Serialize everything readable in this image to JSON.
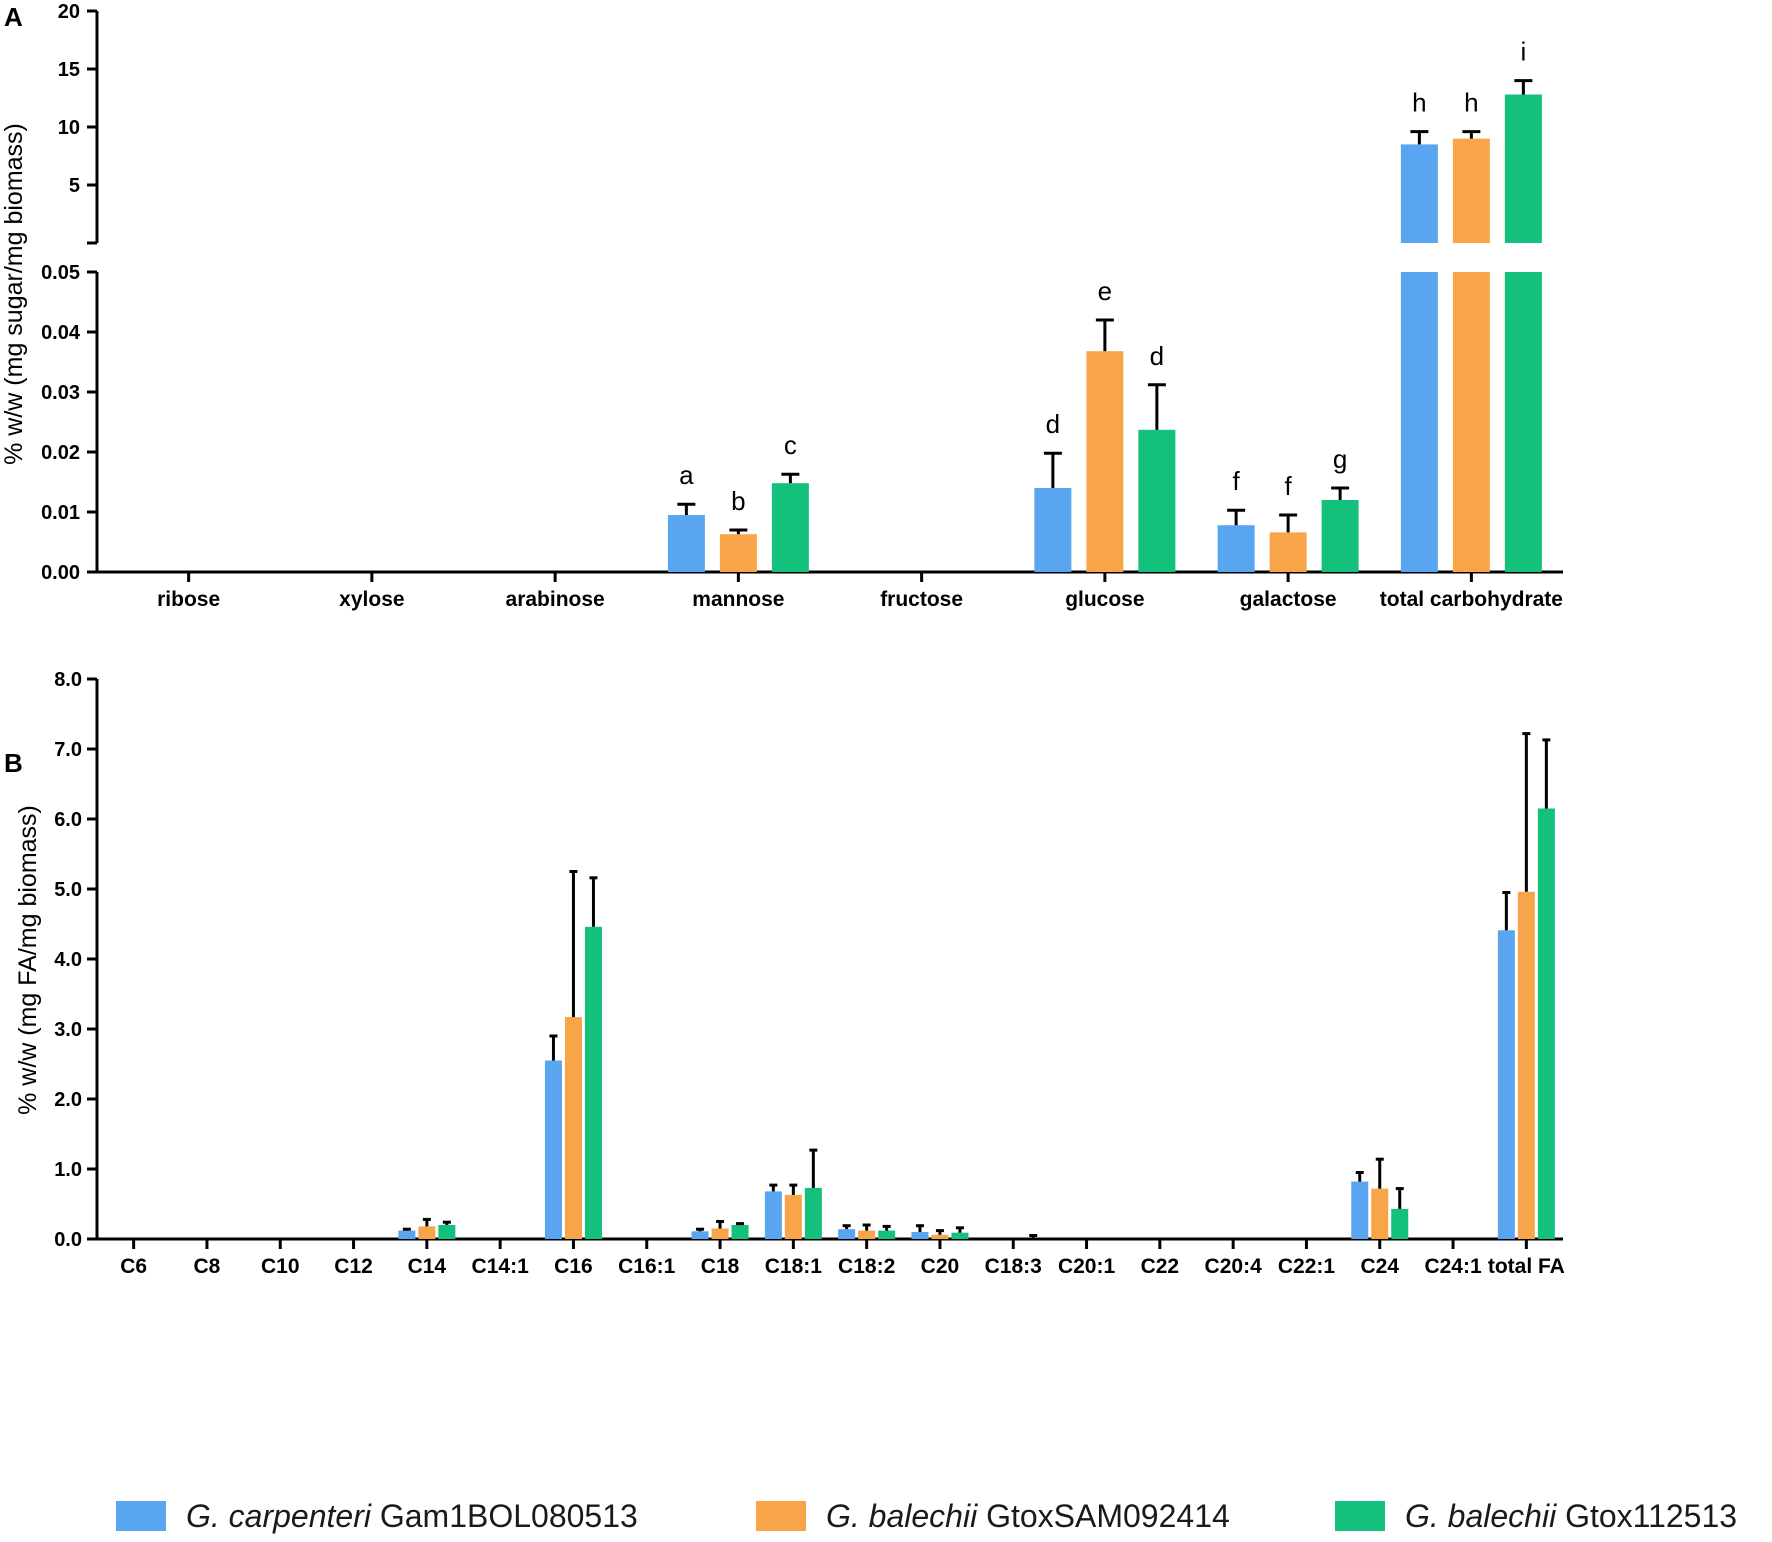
{
  "colors": {
    "series1": "#5aa5f0",
    "series2": "#f8a449",
    "series3": "#13c07c",
    "axis": "#000000"
  },
  "legend": [
    {
      "italic": "G. carpenteri",
      "rest": " Gam1BOL080513"
    },
    {
      "italic": "G. balechii",
      "rest": " GtoxSAM092414"
    },
    {
      "italic": "G. balechii",
      "rest": " Gtox112513"
    }
  ],
  "chart_data": [
    {
      "panel": "A",
      "type": "bar",
      "ylabel": "% w/w (mg sugar/mg biomass)",
      "y_axis_break": true,
      "ylim_lower": [
        0,
        0.05
      ],
      "yticks_lower": [
        "0.00",
        "0.01",
        "0.02",
        "0.03",
        "0.04",
        "0.05"
      ],
      "ylim_upper": [
        0,
        20
      ],
      "yticks_upper": [
        "5",
        "10",
        "15",
        "20"
      ],
      "categories": [
        "ribose",
        "xylose",
        "arabinose",
        "mannose",
        "fructose",
        "glucose",
        "galactose",
        "total carbohydrate"
      ],
      "series": [
        {
          "values": [
            0,
            0,
            0,
            0.0095,
            0,
            0.014,
            0.0078,
            8.5
          ],
          "errors": [
            0,
            0,
            0,
            0.0018,
            0,
            0.0058,
            0.0025,
            1.1
          ],
          "letters": [
            "",
            "",
            "",
            "a",
            "",
            "d",
            "f",
            "h"
          ]
        },
        {
          "values": [
            0,
            0,
            0,
            0.0063,
            0,
            0.0368,
            0.0066,
            9.0
          ],
          "errors": [
            0,
            0,
            0,
            0.0007,
            0,
            0.0052,
            0.0029,
            0.6
          ],
          "letters": [
            "",
            "",
            "",
            "b",
            "",
            "e",
            "f",
            "h"
          ]
        },
        {
          "values": [
            0,
            0,
            0,
            0.0148,
            0,
            0.0237,
            0.012,
            12.8
          ],
          "errors": [
            0,
            0,
            0,
            0.0015,
            0,
            0.0075,
            0.002,
            1.2
          ],
          "letters": [
            "",
            "",
            "",
            "c",
            "",
            "d",
            "g",
            "i"
          ]
        }
      ]
    },
    {
      "panel": "B",
      "type": "bar",
      "ylabel": "% w/w (mg FA/mg biomass)",
      "ylim": [
        0,
        8
      ],
      "yticks": [
        "0.0",
        "1.0",
        "2.0",
        "3.0",
        "4.0",
        "5.0",
        "6.0",
        "7.0",
        "8.0"
      ],
      "categories": [
        "C6",
        "C8",
        "C10",
        "C12",
        "C14",
        "C14:1",
        "C16",
        "C16:1",
        "C18",
        "C18:1",
        "C18:2",
        "C20",
        "C18:3",
        "C20:1",
        "C22",
        "C20:4",
        "C22:1",
        "C24",
        "C24:1",
        "total FA"
      ],
      "series": [
        {
          "values": [
            0,
            0,
            0,
            0,
            0.12,
            0,
            2.55,
            0,
            0.11,
            0.68,
            0.14,
            0.1,
            0,
            0,
            0,
            0,
            0,
            0.82,
            0,
            4.41
          ],
          "errors": [
            0,
            0,
            0,
            0,
            0.02,
            0,
            0.35,
            0,
            0.03,
            0.09,
            0.05,
            0.09,
            0,
            0,
            0,
            0,
            0,
            0.13,
            0,
            0.54
          ]
        },
        {
          "values": [
            0,
            0,
            0,
            0,
            0.18,
            0,
            3.17,
            0,
            0.15,
            0.63,
            0.12,
            0.06,
            0,
            0,
            0,
            0,
            0,
            0.72,
            0,
            4.96
          ],
          "errors": [
            0,
            0,
            0,
            0,
            0.1,
            0,
            2.08,
            0,
            0.1,
            0.14,
            0.08,
            0.06,
            0,
            0,
            0,
            0,
            0,
            0.42,
            0,
            2.26
          ]
        },
        {
          "values": [
            0,
            0,
            0,
            0,
            0.2,
            0,
            4.46,
            0,
            0.2,
            0.73,
            0.12,
            0.09,
            0,
            0,
            0,
            0,
            0,
            0.43,
            0,
            6.15
          ],
          "errors": [
            0,
            0,
            0,
            0,
            0.04,
            0,
            0.7,
            0,
            0.02,
            0.54,
            0.06,
            0.07,
            0.05,
            0,
            0,
            0,
            0,
            0.29,
            0,
            0.98
          ]
        }
      ]
    }
  ]
}
